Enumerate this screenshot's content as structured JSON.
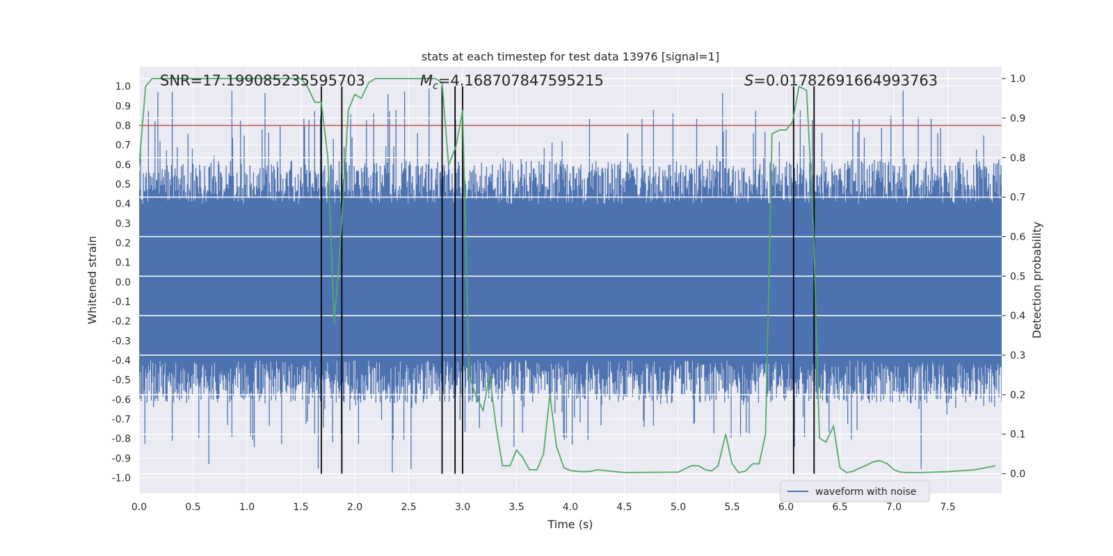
{
  "chart_data": {
    "type": "line",
    "title": "stats at each timestep for test data 13976 [signal=1]",
    "xlabel": "Time (s)",
    "ylabel": "Whitened strain",
    "ylabel_right": "Detection probability",
    "xlim": [
      0.0,
      8.0
    ],
    "ylim_left": [
      -1.08,
      1.1
    ],
    "ylim_right": [
      -0.05,
      1.03
    ],
    "x_ticks": [
      "0.0",
      "0.5",
      "1.0",
      "1.5",
      "2.0",
      "2.5",
      "3.0",
      "3.5",
      "4.0",
      "4.5",
      "5.0",
      "5.5",
      "6.0",
      "6.5",
      "7.0",
      "7.5"
    ],
    "y_ticks_left": [
      "1.0",
      "0.9",
      "0.8",
      "0.7",
      "0.6",
      "0.5",
      "0.4",
      "0.3",
      "0.2",
      "0.1",
      "0.0",
      "-0.1",
      "-0.2",
      "-0.3",
      "-0.4",
      "-0.5",
      "-0.6",
      "-0.7",
      "-0.8",
      "-0.9",
      "-1.0"
    ],
    "y_ticks_right": [
      "1.0",
      "0.9",
      "0.8",
      "0.7",
      "0.6",
      "0.5",
      "0.4",
      "0.3",
      "0.2",
      "0.1",
      "0.0"
    ],
    "annotations": {
      "snr": "SNR=17.199085235595703",
      "mc_symbol": "M",
      "mc_sub": "c",
      "mc_value": "=4.168707847595215",
      "s_symbol": "S",
      "s_value": "=0.01782691664993763"
    },
    "legend": {
      "label": "waveform with noise",
      "placement": "lower-right"
    },
    "threshold": {
      "y": 0.8,
      "color": "#c44e52"
    },
    "vertical_lines_x": [
      1.69,
      1.88,
      2.81,
      2.93,
      3.0,
      6.07,
      6.26
    ],
    "waveform": {
      "name": "waveform with noise",
      "color": "#4c72b0",
      "envelope": 0.4,
      "spike_min_max": [
        -0.98,
        1.0
      ],
      "samples": 1200
    },
    "detection_probability": {
      "name": "Detection probability",
      "color": "#55a868",
      "x": [
        0.0,
        0.06,
        0.12,
        0.25,
        0.5,
        0.75,
        1.0,
        1.25,
        1.5,
        1.56,
        1.63,
        1.69,
        1.75,
        1.81,
        1.87,
        1.94,
        2.0,
        2.06,
        2.13,
        2.19,
        2.25,
        2.5,
        2.75,
        2.81,
        2.87,
        2.94,
        3.0,
        3.06,
        3.12,
        3.19,
        3.25,
        3.31,
        3.37,
        3.44,
        3.5,
        3.56,
        3.62,
        3.69,
        3.75,
        3.81,
        3.87,
        3.94,
        4.0,
        4.06,
        4.12,
        4.19,
        4.25,
        4.31,
        4.5,
        5.0,
        5.12,
        5.19,
        5.25,
        5.31,
        5.37,
        5.44,
        5.5,
        5.56,
        5.62,
        5.69,
        5.75,
        5.81,
        5.87,
        5.94,
        6.0,
        6.06,
        6.12,
        6.19,
        6.25,
        6.31,
        6.37,
        6.44,
        6.5,
        6.56,
        6.62,
        6.69,
        6.75,
        6.81,
        6.87,
        6.94,
        7.0,
        7.06,
        7.12,
        7.19,
        7.25,
        7.5,
        7.75,
        7.94
      ],
      "y": [
        0.78,
        0.98,
        1.0,
        1.0,
        1.0,
        1.0,
        1.0,
        1.0,
        1.0,
        0.98,
        0.94,
        0.94,
        0.8,
        0.38,
        0.6,
        0.92,
        0.96,
        0.95,
        0.99,
        1.0,
        1.0,
        1.0,
        1.0,
        0.99,
        0.78,
        0.83,
        0.92,
        0.25,
        0.2,
        0.16,
        0.25,
        0.12,
        0.02,
        0.02,
        0.06,
        0.04,
        0.01,
        0.01,
        0.05,
        0.2,
        0.07,
        0.015,
        0.008,
        0.006,
        0.005,
        0.006,
        0.01,
        0.008,
        0.003,
        0.004,
        0.02,
        0.02,
        0.01,
        0.007,
        0.02,
        0.1,
        0.025,
        0.003,
        0.006,
        0.025,
        0.025,
        0.1,
        0.86,
        0.87,
        0.87,
        0.89,
        0.98,
        0.97,
        0.65,
        0.09,
        0.08,
        0.12,
        0.015,
        0.003,
        0.006,
        0.015,
        0.022,
        0.03,
        0.033,
        0.025,
        0.01,
        0.004,
        0.003,
        0.003,
        0.003,
        0.005,
        0.01,
        0.02
      ]
    }
  }
}
